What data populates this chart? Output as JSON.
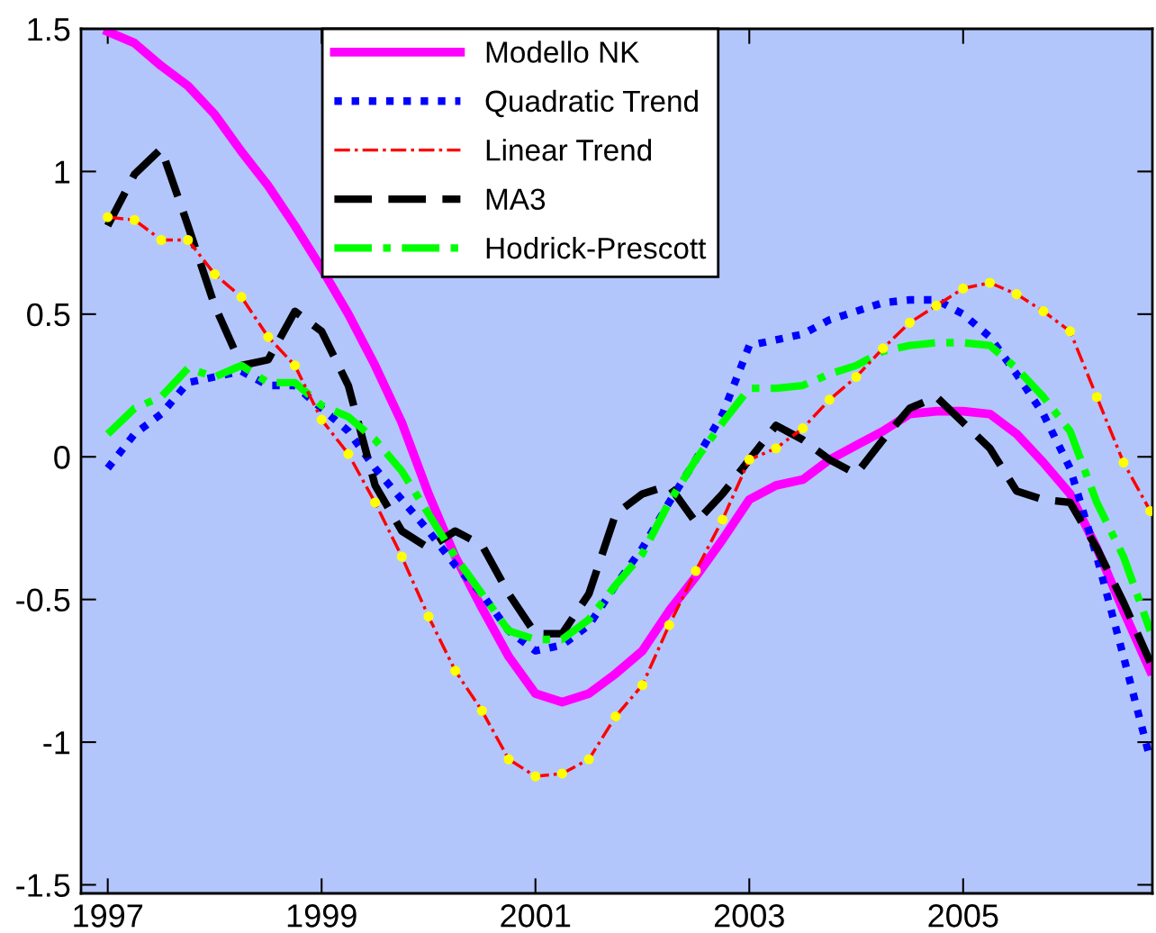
{
  "chart_data": {
    "type": "line",
    "x": [
      1997.0,
      1997.25,
      1997.5,
      1997.75,
      1998.0,
      1998.25,
      1998.5,
      1998.75,
      1999.0,
      1999.25,
      1999.5,
      1999.75,
      2000.0,
      2000.25,
      2000.5,
      2000.75,
      2001.0,
      2001.25,
      2001.5,
      2001.75,
      2002.0,
      2002.25,
      2002.5,
      2002.75,
      2003.0,
      2003.25,
      2003.5,
      2003.75,
      2004.0,
      2004.25,
      2004.5,
      2004.75,
      2005.0,
      2005.25,
      2005.5,
      2005.75,
      2006.0,
      2006.25,
      2006.5,
      2006.75
    ],
    "xlim": [
      1996.75,
      2006.77
    ],
    "xticks": [
      1997,
      1999,
      2001,
      2003,
      2005
    ],
    "ylim": [
      -1.53,
      1.5
    ],
    "yticks": [
      -1.5,
      -1,
      -0.5,
      0,
      0.5,
      1,
      1.5
    ],
    "grid": false,
    "legend": "top",
    "series": [
      {
        "name": "Modello NK",
        "color": "#ff00ff",
        "line_style": "solid",
        "values": [
          1.49,
          1.45,
          1.37,
          1.3,
          1.2,
          1.07,
          0.95,
          0.81,
          0.66,
          0.5,
          0.32,
          0.12,
          -0.13,
          -0.35,
          -0.53,
          -0.7,
          -0.83,
          -0.86,
          -0.83,
          -0.76,
          -0.68,
          -0.54,
          -0.42,
          -0.29,
          -0.15,
          -0.1,
          -0.08,
          -0.01,
          0.04,
          0.09,
          0.15,
          0.16,
          0.16,
          0.15,
          0.08,
          -0.02,
          -0.13,
          -0.32,
          -0.54,
          -0.75
        ]
      },
      {
        "name": "Quadratic Trend",
        "color": "#0000ff",
        "line_style": "dotted",
        "values": [
          -0.04,
          0.08,
          0.15,
          0.26,
          0.28,
          0.3,
          0.25,
          0.25,
          0.17,
          0.09,
          -0.04,
          -0.15,
          -0.26,
          -0.38,
          -0.48,
          -0.61,
          -0.68,
          -0.66,
          -0.59,
          -0.45,
          -0.32,
          -0.16,
          -0.01,
          0.15,
          0.39,
          0.41,
          0.43,
          0.48,
          0.51,
          0.54,
          0.55,
          0.55,
          0.5,
          0.42,
          0.29,
          0.15,
          -0.04,
          -0.35,
          -0.7,
          -1.06
        ]
      },
      {
        "name": "Linear Trend",
        "color": "#ff0000",
        "line_style": "dashdot",
        "marker": "circle",
        "values": [
          0.84,
          0.83,
          0.76,
          0.76,
          0.64,
          0.56,
          0.42,
          0.32,
          0.13,
          0.01,
          -0.16,
          -0.35,
          -0.56,
          -0.75,
          -0.89,
          -1.06,
          -1.12,
          -1.11,
          -1.06,
          -0.91,
          -0.8,
          -0.59,
          -0.4,
          -0.22,
          -0.01,
          0.03,
          0.1,
          0.2,
          0.28,
          0.38,
          0.47,
          0.53,
          0.59,
          0.61,
          0.57,
          0.51,
          0.44,
          0.21,
          -0.02,
          -0.19
        ]
      },
      {
        "name": "MA3",
        "color": "#000000",
        "line_style": "dashed",
        "values": [
          0.81,
          0.99,
          1.08,
          0.81,
          0.53,
          0.32,
          0.34,
          0.51,
          0.44,
          0.25,
          -0.1,
          -0.26,
          -0.32,
          -0.26,
          -0.31,
          -0.48,
          -0.62,
          -0.62,
          -0.48,
          -0.2,
          -0.13,
          -0.1,
          -0.23,
          -0.13,
          -0.01,
          0.11,
          0.06,
          -0.01,
          -0.06,
          0.06,
          0.17,
          0.21,
          0.12,
          0.03,
          -0.12,
          -0.15,
          -0.16,
          -0.32,
          -0.51,
          -0.72
        ]
      },
      {
        "name": "Hodrick-Prescott",
        "color": "#00ff00",
        "line_style": "dashdot",
        "values": [
          0.08,
          0.17,
          0.21,
          0.31,
          0.28,
          0.32,
          0.26,
          0.26,
          0.18,
          0.14,
          0.06,
          -0.05,
          -0.2,
          -0.35,
          -0.48,
          -0.61,
          -0.64,
          -0.64,
          -0.57,
          -0.45,
          -0.34,
          -0.16,
          -0.01,
          0.12,
          0.24,
          0.24,
          0.25,
          0.29,
          0.32,
          0.37,
          0.39,
          0.4,
          0.4,
          0.39,
          0.31,
          0.21,
          0.09,
          -0.16,
          -0.35,
          -0.61
        ]
      }
    ]
  }
}
